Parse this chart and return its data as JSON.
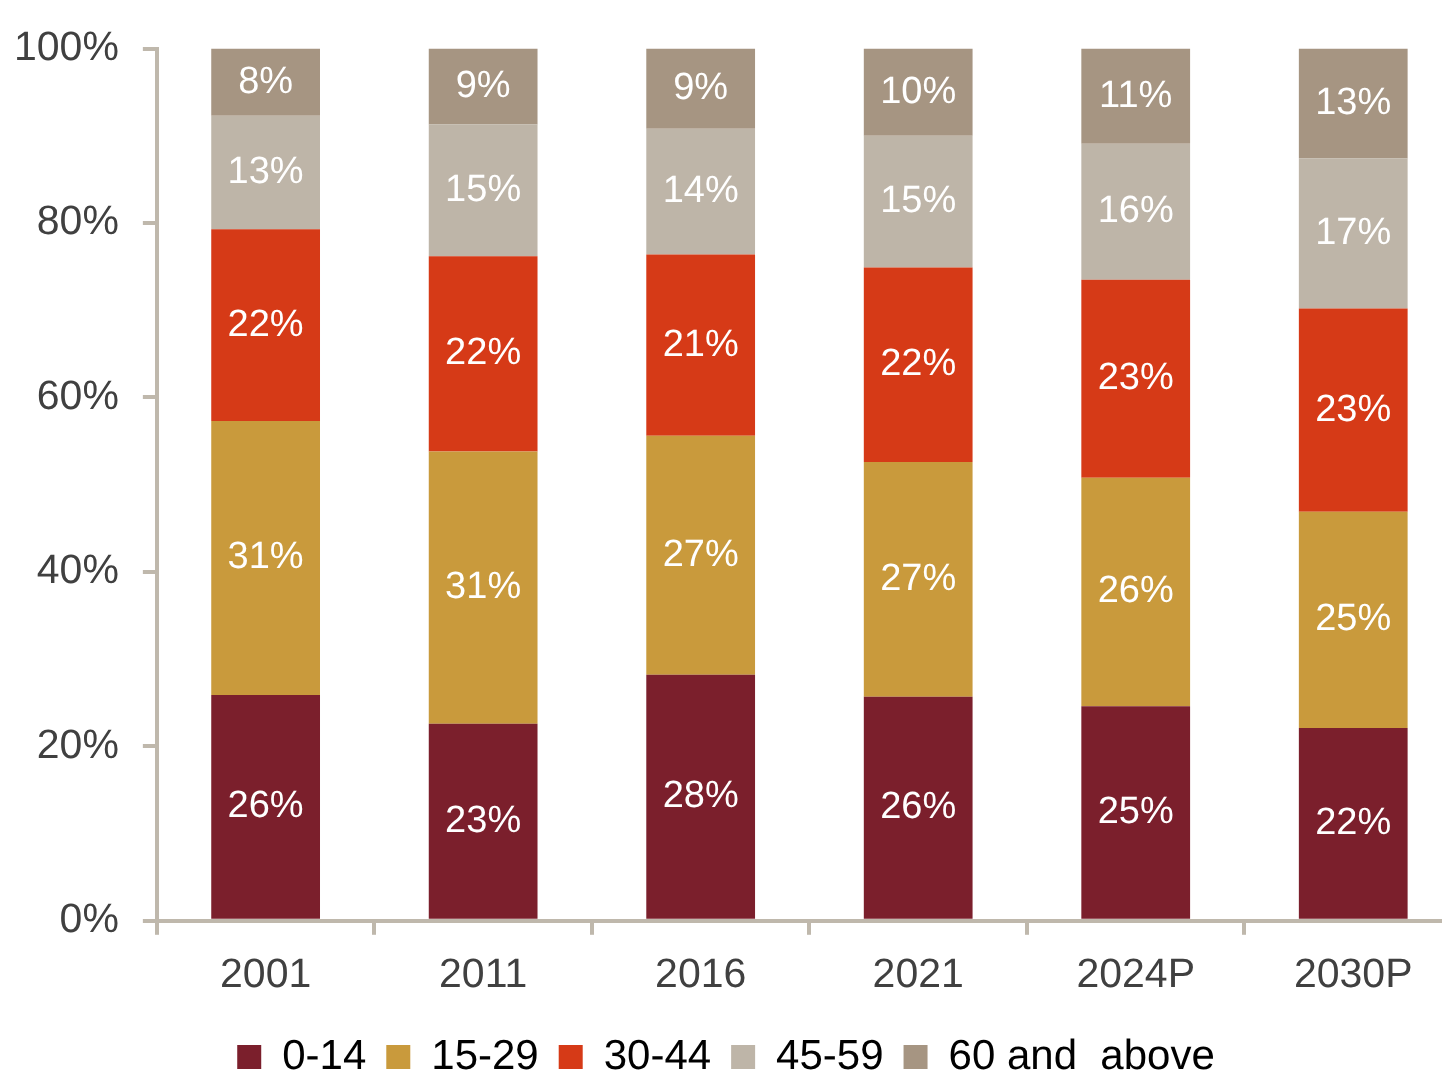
{
  "chart_data": {
    "type": "bar",
    "stacked": true,
    "categories": [
      "2001",
      "2011",
      "2016",
      "2021",
      "2024P",
      "2030P"
    ],
    "series": [
      {
        "name": "0-14",
        "color": "#7b1f2c",
        "values": [
          25.9,
          22.6,
          28.2,
          25.7,
          24.6,
          22.1
        ],
        "value_labels": [
          "26%",
          "23%",
          "28%",
          "26%",
          "25%",
          "22%"
        ]
      },
      {
        "name": "15-29",
        "color": "#c99a3c",
        "values": [
          31.4,
          31.2,
          27.4,
          26.9,
          26.2,
          24.8
        ],
        "value_labels": [
          "31%",
          "31%",
          "27%",
          "27%",
          "26%",
          "25%"
        ]
      },
      {
        "name": "30-44",
        "color": "#d63a17",
        "values": [
          22.0,
          22.4,
          20.8,
          22.3,
          22.7,
          23.3
        ],
        "value_labels": [
          "22%",
          "22%",
          "21%",
          "22%",
          "23%",
          "23%"
        ]
      },
      {
        "name": "45-59",
        "color": "#beb5a8",
        "values": [
          13.0,
          15.1,
          14.4,
          15.1,
          15.6,
          17.2
        ],
        "value_labels": [
          "13%",
          "15%",
          "14%",
          "15%",
          "16%",
          "17%"
        ]
      },
      {
        "name": "60 and  above",
        "color": "#a69582",
        "values": [
          7.7,
          8.7,
          9.2,
          10.0,
          10.9,
          12.6
        ],
        "value_labels": [
          "8%",
          "9%",
          "9%",
          "10%",
          "11%",
          "13%"
        ]
      }
    ],
    "ylim": [
      0,
      100
    ],
    "yticks": [
      {
        "value": 0,
        "label": "0%"
      },
      {
        "value": 20,
        "label": "20%"
      },
      {
        "value": 40,
        "label": "40%"
      },
      {
        "value": 60,
        "label": "60%"
      },
      {
        "value": 80,
        "label": "80%"
      },
      {
        "value": 100,
        "label": "100%"
      }
    ],
    "legend": "bottom"
  }
}
